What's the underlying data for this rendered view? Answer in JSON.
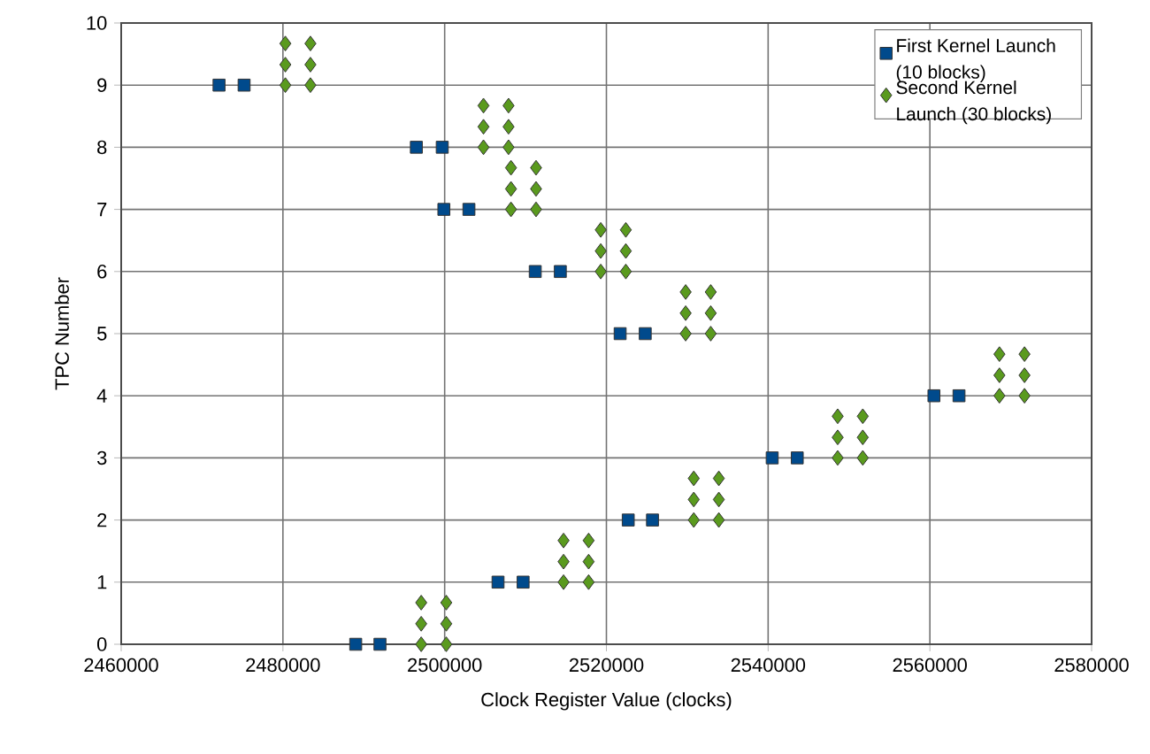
{
  "chart_data": {
    "type": "scatter",
    "xlabel": "Clock Register Value (clocks)",
    "ylabel": "TPC Number",
    "xlim": [
      2460000,
      2580000
    ],
    "xticks": [
      2460000,
      2480000,
      2500000,
      2520000,
      2540000,
      2560000,
      2580000
    ],
    "ylim": [
      0,
      10
    ],
    "yticks": [
      0,
      1,
      2,
      3,
      4,
      5,
      6,
      7,
      8,
      9,
      10
    ],
    "grid": true,
    "legend": "top right",
    "series": [
      {
        "name": "First Kernel Launch (10 blocks)",
        "color": "#004a8c",
        "marker": "square",
        "x": [
          2472100,
          2475200,
          2496500,
          2499700,
          2499900,
          2503000,
          2511200,
          2514300,
          2521700,
          2524800,
          2560500,
          2563600,
          2540500,
          2543600,
          2522700,
          2525700,
          2506600,
          2509700,
          2489000,
          2492000
        ],
        "values": [
          9,
          9,
          8,
          8,
          7,
          7,
          6,
          6,
          5,
          5,
          4,
          4,
          3,
          3,
          2,
          2,
          1,
          1,
          0,
          0
        ]
      },
      {
        "name": "Second Kernel Launch (30 blocks)",
        "color": "#5a9a1e",
        "marker": "diamond",
        "x": [
          2480300,
          2480300,
          2480300,
          2483400,
          2483400,
          2483400,
          2504800,
          2504800,
          2504800,
          2507900,
          2507900,
          2507900,
          2508200,
          2508200,
          2508200,
          2511300,
          2511300,
          2511300,
          2519300,
          2519300,
          2519300,
          2522400,
          2522400,
          2522400,
          2529800,
          2529800,
          2529800,
          2532900,
          2532900,
          2532900,
          2568600,
          2568600,
          2568600,
          2571700,
          2571700,
          2571700,
          2548600,
          2548600,
          2548600,
          2551700,
          2551700,
          2551700,
          2530800,
          2530800,
          2530800,
          2533900,
          2533900,
          2533900,
          2514700,
          2514700,
          2514700,
          2517800,
          2517800,
          2517800,
          2497100,
          2497100,
          2497100,
          2500200,
          2500200,
          2500200
        ],
        "values": [
          9,
          9.33,
          9.67,
          9,
          9.33,
          9.67,
          8,
          8.33,
          8.67,
          8,
          8.33,
          8.67,
          7,
          7.33,
          7.67,
          7,
          7.33,
          7.67,
          6,
          6.33,
          6.67,
          6,
          6.33,
          6.67,
          5,
          5.33,
          5.67,
          5,
          5.33,
          5.67,
          4,
          4.33,
          4.67,
          4,
          4.33,
          4.67,
          3,
          3.33,
          3.67,
          3,
          3.33,
          3.67,
          2,
          2.33,
          2.67,
          2,
          2.33,
          2.67,
          1,
          1.33,
          1.67,
          1,
          1.33,
          1.67,
          0,
          0.33,
          0.67,
          0,
          0.33,
          0.67
        ]
      }
    ]
  }
}
